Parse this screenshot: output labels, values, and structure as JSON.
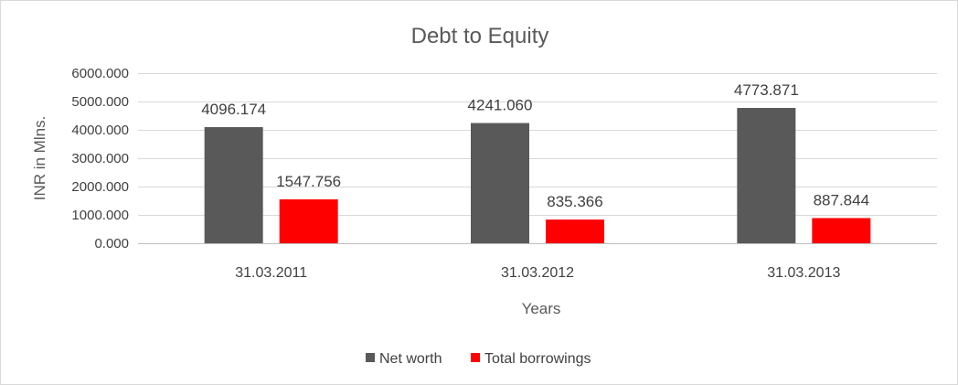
{
  "chart_data": {
    "type": "bar",
    "title": "Debt to Equity",
    "xlabel": "Years",
    "ylabel": "INR in Mlns.",
    "categories": [
      "31.03.2011",
      "31.03.2012",
      "31.03.2013"
    ],
    "series": [
      {
        "name": "Net worth",
        "values": [
          4096.174,
          4241.06,
          4773.871
        ],
        "labels": [
          "4096.174",
          "4241.060",
          "4773.871"
        ],
        "color": "#595959"
      },
      {
        "name": "Total borrowings",
        "values": [
          1547.756,
          835.366,
          887.844
        ],
        "labels": [
          "1547.756",
          "835.366",
          "887.844"
        ],
        "color": "#ff0000"
      }
    ],
    "ylim": [
      0,
      6000
    ],
    "yticks": [
      0,
      1000,
      2000,
      3000,
      4000,
      5000,
      6000
    ],
    "ytick_labels": [
      "0.000",
      "1000.000",
      "2000.000",
      "3000.000",
      "4000.000",
      "5000.000",
      "6000.000"
    ],
    "grid": true,
    "legend_position": "bottom"
  }
}
